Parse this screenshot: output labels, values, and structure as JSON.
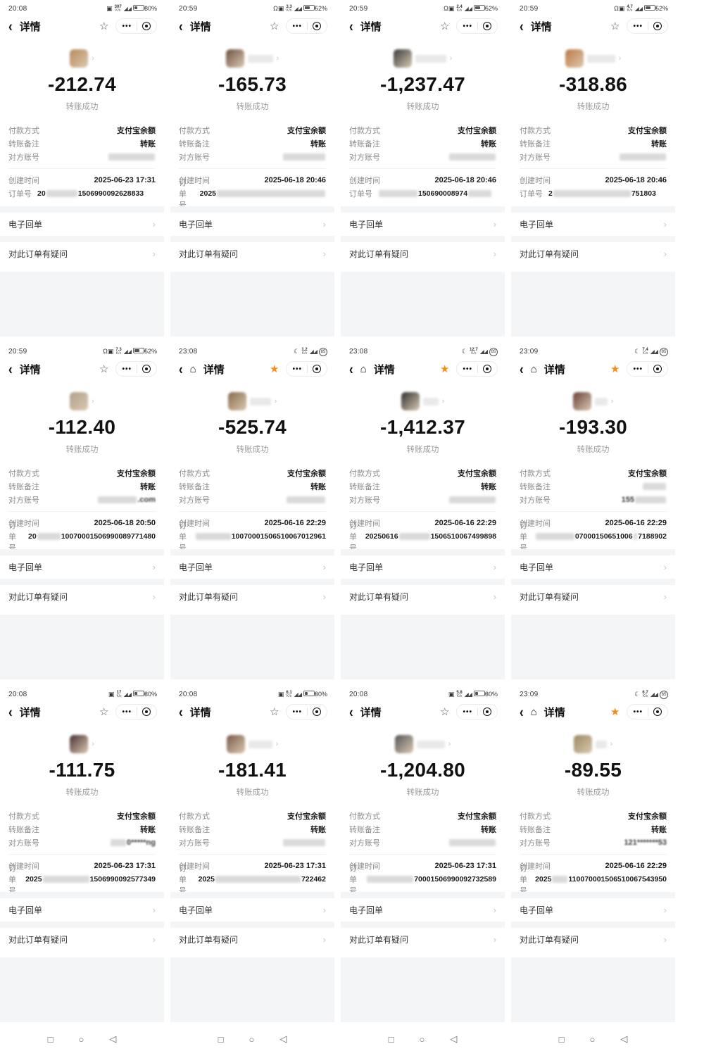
{
  "shared": {
    "nav_title": "详情",
    "result_text": "转账成功",
    "fields": {
      "payment_method_label": "付款方式",
      "payment_method_value": "支付宝余额",
      "note_label": "转账备注",
      "note_value": "转账",
      "account_label": "对方账号",
      "created_label": "创建时间",
      "order_label": "订单号"
    },
    "actions": {
      "receipt": "电子回单",
      "question": "对此订单有疑问"
    },
    "colors": {
      "star_active": "#FA8C16",
      "amount_text": "#111111",
      "section_gray": "#f4f5f6"
    },
    "android_nav_icons": [
      "□",
      "○",
      "◁"
    ],
    "status_glyphs": {
      "moon": "☾",
      "headset": "Ω",
      "box": "▣"
    },
    "speed_unit": "K/s"
  },
  "panels": [
    {
      "time": "20:08",
      "status_icons": [
        "box"
      ],
      "speed": "307",
      "battery": "30%",
      "battery_style": "percent",
      "battery_fill": 0.3,
      "starred": false,
      "amount": "-212.74",
      "created": "2025-06-23 17:31",
      "note_blurred": false,
      "account_parts": [
        {
          "b": true,
          "len": 12
        }
      ],
      "order_parts": [
        {
          "t": "20"
        },
        {
          "b": true,
          "len": 8
        },
        {
          "t": "1506990092628833"
        }
      ],
      "avatar_color": "#b98a56",
      "name_blur_w": 0
    },
    {
      "time": "20:59",
      "status_icons": [
        "headset",
        "box"
      ],
      "speed": "3.3",
      "battery": "52%",
      "battery_style": "percent",
      "battery_fill": 0.52,
      "starred": false,
      "amount": "-165.73",
      "created": "2025-06-18 20:46",
      "note_blurred": false,
      "account_parts": [
        {
          "b": true,
          "len": 11
        }
      ],
      "order_parts": [
        {
          "t": "2025"
        },
        {
          "b": true,
          "len": 28
        }
      ],
      "avatar_color": "#6e5140",
      "name_blur_w": 36
    },
    {
      "time": "20:59",
      "status_icons": [
        "headset",
        "box"
      ],
      "speed": "2.4",
      "battery": "52%",
      "battery_style": "percent",
      "battery_fill": 0.52,
      "starred": false,
      "amount": "-1,237.47",
      "created": "2025-06-18 20:46",
      "note_blurred": false,
      "account_parts": [
        {
          "b": true,
          "len": 12
        }
      ],
      "order_parts": [
        {
          "b": true,
          "len": 10
        },
        {
          "t": "150690008974"
        },
        {
          "b": true,
          "len": 6
        }
      ],
      "avatar_color": "#3a3a3a",
      "name_blur_w": 44
    },
    {
      "time": "20:59",
      "status_icons": [
        "headset",
        "box"
      ],
      "speed": "4.7",
      "battery": "52%",
      "battery_style": "percent",
      "battery_fill": 0.52,
      "starred": false,
      "amount": "-318.86",
      "created": "2025-06-18 20:46",
      "note_blurred": false,
      "account_parts": [
        {
          "b": true,
          "len": 12
        }
      ],
      "order_parts": [
        {
          "t": "2"
        },
        {
          "b": true,
          "len": 20
        },
        {
          "t": "751803"
        }
      ],
      "avatar_color": "#c07840",
      "name_blur_w": 40
    },
    {
      "time": "20:59",
      "status_icons": [
        "headset",
        "box"
      ],
      "speed": "7.3",
      "battery": "52%",
      "battery_style": "percent",
      "battery_fill": 0.52,
      "starred": false,
      "amount": "-112.40",
      "created": "2025-06-18 20:50",
      "note_blurred": false,
      "account_parts": [
        {
          "b": true,
          "len": 10
        },
        {
          "t": ".com",
          "semi": true
        }
      ],
      "order_parts": [
        {
          "t": "20"
        },
        {
          "b": true,
          "len": 6
        },
        {
          "t": "10070001506990089771480"
        }
      ],
      "avatar_color": "#b0a089",
      "name_blur_w": 0
    },
    {
      "time": "23:08",
      "status_icons": [
        "moon"
      ],
      "speed": "1.2",
      "battery": "85",
      "battery_style": "circle",
      "battery_fill": 0.85,
      "starred": true,
      "amount": "-525.74",
      "created": "2025-06-16 22:29",
      "note_blurred": false,
      "account_parts": [
        {
          "b": true,
          "len": 10
        }
      ],
      "order_parts": [
        {
          "b": true,
          "len": 9
        },
        {
          "t": "10070001506510067012961"
        }
      ],
      "avatar_color": "#8a6a4a",
      "name_blur_w": 30
    },
    {
      "time": "23:08",
      "status_icons": [
        "moon"
      ],
      "speed": "12.7",
      "battery": "85",
      "battery_style": "circle",
      "battery_fill": 0.85,
      "starred": true,
      "amount": "-1,412.37",
      "created": "2025-06-16 22:29",
      "note_blurred": false,
      "account_parts": [
        {
          "b": true,
          "len": 12
        }
      ],
      "order_parts": [
        {
          "t": "20250616"
        },
        {
          "b": true,
          "len": 8
        },
        {
          "t": "1506510067499898"
        }
      ],
      "avatar_color": "#2f2f2f",
      "name_blur_w": 22
    },
    {
      "time": "23:09",
      "status_icons": [
        "moon"
      ],
      "speed": "7.4",
      "battery": "85",
      "battery_style": "circle",
      "battery_fill": 0.85,
      "starred": true,
      "amount": "-193.30",
      "created": "2025-06-16 22:29",
      "note_blurred": true,
      "account_parts": [
        {
          "t": "155",
          "semi": true
        },
        {
          "b": true,
          "len": 8
        }
      ],
      "order_parts": [
        {
          "b": true,
          "len": 10
        },
        {
          "t": "07000150651006"
        },
        {
          "b": true,
          "len": 1
        },
        {
          "t": "7188902"
        }
      ],
      "avatar_color": "#6a4038",
      "name_blur_w": 18
    },
    {
      "time": "20:08",
      "status_icons": [
        "box"
      ],
      "speed": "17",
      "battery": "30%",
      "battery_style": "percent",
      "battery_fill": 0.3,
      "starred": false,
      "amount": "-111.75",
      "created": "2025-06-23 17:31",
      "note_blurred": false,
      "account_parts": [
        {
          "b": true,
          "len": 4
        },
        {
          "t": "0*****ng",
          "semi": true
        }
      ],
      "order_parts": [
        {
          "t": "2025"
        },
        {
          "b": true,
          "len": 12
        },
        {
          "t": "1506990092577349"
        }
      ],
      "avatar_color": "#4a3030",
      "name_blur_w": 0
    },
    {
      "time": "20:08",
      "status_icons": [
        "box"
      ],
      "speed": "6.1",
      "battery": "30%",
      "battery_style": "percent",
      "battery_fill": 0.3,
      "starred": false,
      "amount": "-181.41",
      "created": "2025-06-23 17:31",
      "note_blurred": false,
      "account_parts": [
        {
          "b": true,
          "len": 11
        }
      ],
      "order_parts": [
        {
          "t": "2025"
        },
        {
          "b": true,
          "len": 22
        },
        {
          "t": "722462"
        }
      ],
      "avatar_color": "#7a5a48",
      "name_blur_w": 34
    },
    {
      "time": "20:08",
      "status_icons": [
        "box"
      ],
      "speed": "5.8",
      "battery": "30%",
      "battery_style": "percent",
      "battery_fill": 0.3,
      "starred": false,
      "amount": "-1,204.80",
      "created": "2025-06-23 17:31",
      "note_blurred": false,
      "account_parts": [
        {
          "b": true,
          "len": 12
        }
      ],
      "order_parts": [
        {
          "b": true,
          "len": 12
        },
        {
          "t": "70001506990092732589"
        }
      ],
      "avatar_color": "#555555",
      "name_blur_w": 40
    },
    {
      "time": "23:09",
      "status_icons": [
        "moon"
      ],
      "speed": "6.7",
      "battery": "85",
      "battery_style": "circle",
      "battery_fill": 0.85,
      "starred": true,
      "amount": "-89.55",
      "created": "2025-06-16 22:29",
      "note_blurred": false,
      "account_parts": [
        {
          "t": "121*******53",
          "semi": true
        }
      ],
      "order_parts": [
        {
          "t": "2025"
        },
        {
          "b": true,
          "len": 4
        },
        {
          "t": "110070001506510067543950"
        }
      ],
      "avatar_color": "#9a8a60",
      "name_blur_w": 16
    }
  ]
}
